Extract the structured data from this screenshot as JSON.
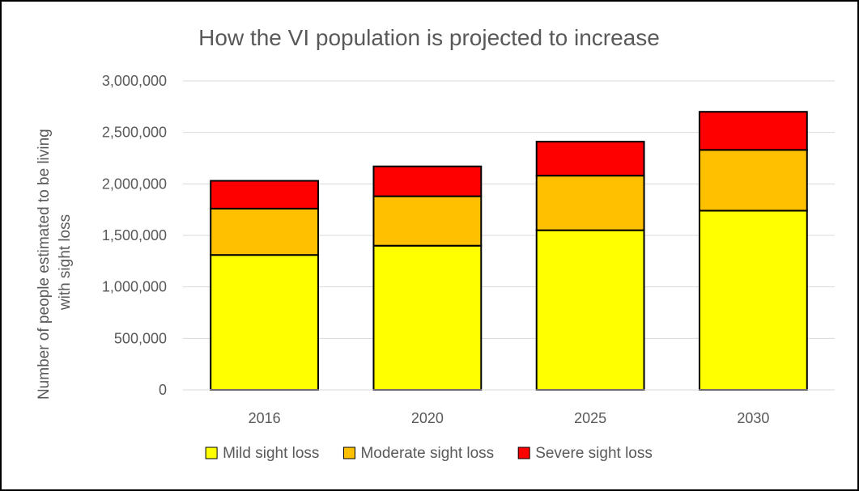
{
  "chart_data": {
    "type": "bar",
    "stacked": true,
    "title": "How the VI population is projected to increase",
    "xlabel": "",
    "ylabel_lines": [
      "Number of people estimated to be living",
      "with sight loss"
    ],
    "categories": [
      "2016",
      "2020",
      "2025",
      "2030"
    ],
    "series": [
      {
        "name": "Mild sight loss",
        "color": "#FFFF00",
        "values": [
          1310000,
          1400000,
          1550000,
          1740000
        ]
      },
      {
        "name": "Moderate sight loss",
        "color": "#FFC000",
        "values": [
          450000,
          480000,
          530000,
          590000
        ]
      },
      {
        "name": "Severe sight loss",
        "color": "#FF0000",
        "values": [
          270000,
          290000,
          330000,
          370000
        ]
      }
    ],
    "ylim": [
      0,
      3000000
    ],
    "yticks": [
      0,
      500000,
      1000000,
      1500000,
      2000000,
      2500000,
      3000000
    ],
    "ytick_labels": [
      "0",
      "500,000",
      "1,000,000",
      "1,500,000",
      "2,000,000",
      "2,500,000",
      "3,000,000"
    ],
    "grid": true,
    "legend_position": "bottom"
  }
}
